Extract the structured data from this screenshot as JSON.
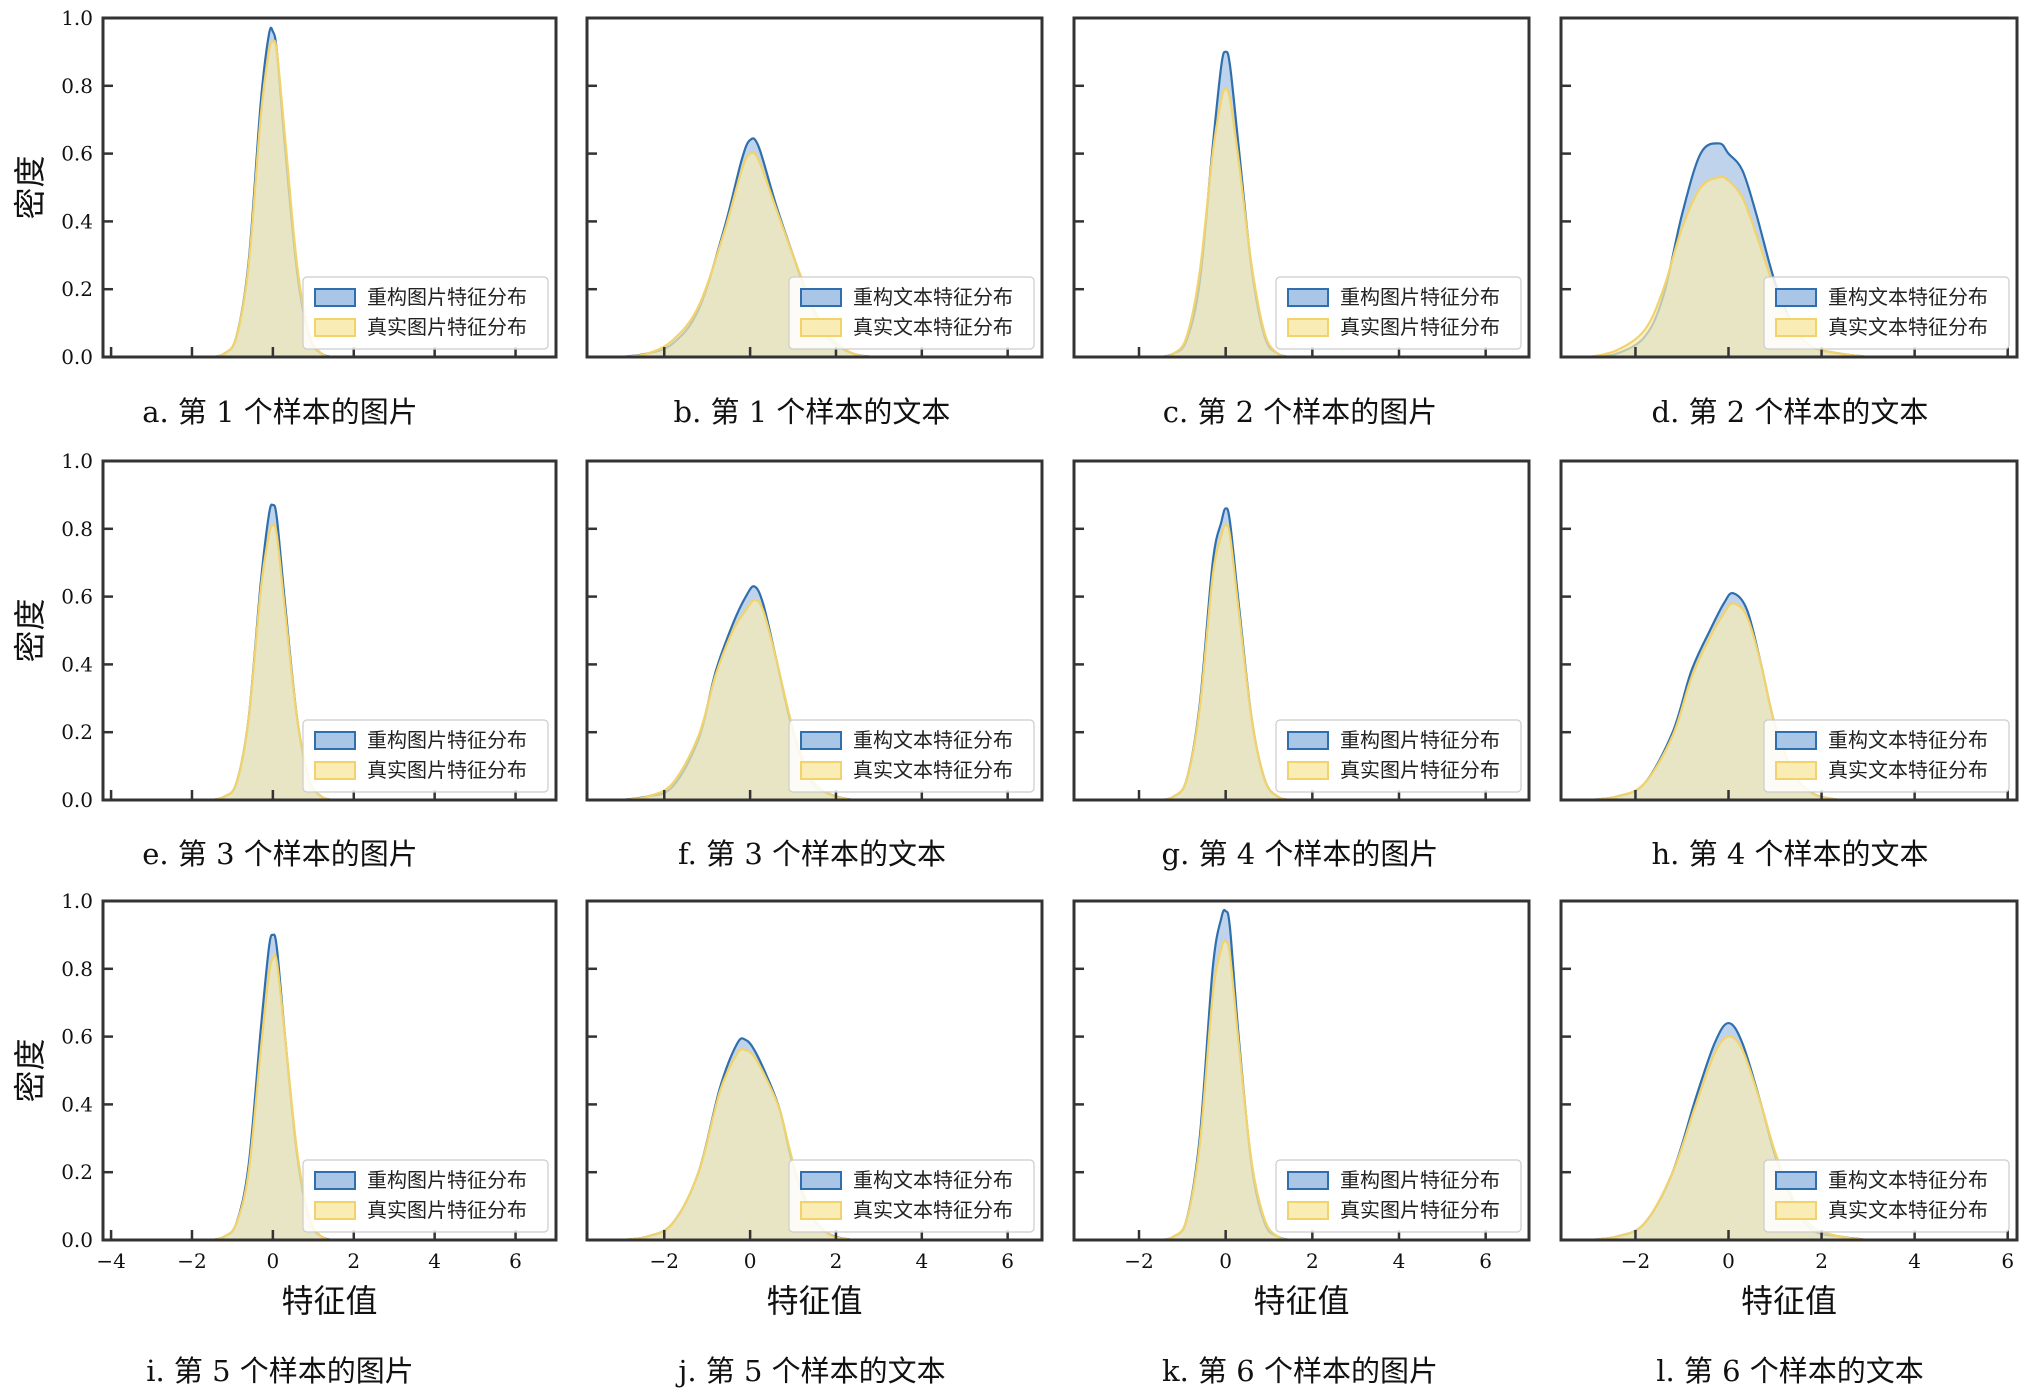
{
  "chart_data": {
    "type": "area",
    "colors": {
      "reconstructed": "#2f6fad",
      "reconstructed_fill": "#a9c6e6",
      "real": "#f2d36b",
      "real_fill": "#f9ecb4",
      "overlap_fill": "#d9dcc8",
      "frame": "#333333"
    },
    "ylabel_text": "密度",
    "xlabel_text": "特征值",
    "panels": [
      {
        "id": "a",
        "caption": "a. 第 1 个样本的图片",
        "kind": "image",
        "xlim": [
          -4.2,
          7.0
        ],
        "ylim": [
          0,
          1.0
        ],
        "series": [
          {
            "name": "重构图片特征分布",
            "x": [
              -1.5,
              -1.2,
              -0.9,
              -0.6,
              -0.3,
              -0.1,
              0.0,
              0.1,
              0.3,
              0.6,
              0.9,
              1.2,
              1.5
            ],
            "y": [
              0.0,
              0.01,
              0.06,
              0.28,
              0.75,
              0.95,
              0.96,
              0.9,
              0.62,
              0.25,
              0.06,
              0.01,
              0.0
            ]
          },
          {
            "name": "真实图片特征分布",
            "x": [
              -1.5,
              -1.2,
              -0.9,
              -0.6,
              -0.3,
              -0.1,
              0.0,
              0.1,
              0.3,
              0.6,
              0.9,
              1.2,
              1.5
            ],
            "y": [
              0.0,
              0.01,
              0.06,
              0.27,
              0.71,
              0.9,
              0.93,
              0.9,
              0.65,
              0.27,
              0.07,
              0.01,
              0.0
            ]
          }
        ]
      },
      {
        "id": "b",
        "caption": "b. 第 1 个样本的文本",
        "kind": "text",
        "xlim": [
          -3.8,
          6.8
        ],
        "ylim": [
          0,
          1.0
        ],
        "series": [
          {
            "name": "重构文本特征分布",
            "x": [
              -3.0,
              -2.4,
              -1.8,
              -1.2,
              -0.6,
              -0.2,
              0.0,
              0.2,
              0.6,
              1.0,
              1.4,
              1.8,
              2.4,
              3.0
            ],
            "y": [
              0.0,
              0.01,
              0.04,
              0.14,
              0.38,
              0.58,
              0.64,
              0.62,
              0.45,
              0.3,
              0.16,
              0.06,
              0.01,
              0.0
            ]
          },
          {
            "name": "真实文本特征分布",
            "x": [
              -3.0,
              -2.4,
              -1.8,
              -1.2,
              -0.6,
              -0.2,
              0.0,
              0.2,
              0.6,
              1.0,
              1.4,
              1.8,
              2.4,
              3.0
            ],
            "y": [
              0.0,
              0.01,
              0.05,
              0.15,
              0.37,
              0.55,
              0.6,
              0.58,
              0.44,
              0.3,
              0.17,
              0.07,
              0.01,
              0.0
            ]
          }
        ]
      },
      {
        "id": "c",
        "caption": "c. 第 2 个样本的图片",
        "kind": "image",
        "xlim": [
          -3.5,
          7.0
        ],
        "ylim": [
          0,
          1.0
        ],
        "series": [
          {
            "name": "重构图片特征分布",
            "x": [
              -1.5,
              -1.2,
              -0.9,
              -0.6,
              -0.3,
              -0.1,
              0.0,
              0.1,
              0.3,
              0.6,
              0.9,
              1.2,
              1.5
            ],
            "y": [
              0.0,
              0.01,
              0.05,
              0.22,
              0.62,
              0.86,
              0.9,
              0.86,
              0.62,
              0.26,
              0.06,
              0.01,
              0.0
            ]
          },
          {
            "name": "真实图片特征分布",
            "x": [
              -1.5,
              -1.2,
              -0.9,
              -0.6,
              -0.3,
              -0.1,
              0.0,
              0.1,
              0.3,
              0.6,
              0.9,
              1.2,
              1.5
            ],
            "y": [
              0.0,
              0.01,
              0.06,
              0.25,
              0.6,
              0.76,
              0.79,
              0.76,
              0.58,
              0.27,
              0.07,
              0.01,
              0.0
            ]
          }
        ]
      },
      {
        "id": "d",
        "caption": "d. 第 2 个样本的文本",
        "kind": "text",
        "xlim": [
          -3.6,
          6.2
        ],
        "ylim": [
          0,
          1.0
        ],
        "series": [
          {
            "name": "重构文本特征分布",
            "x": [
              -3.0,
              -2.4,
              -1.8,
              -1.4,
              -1.0,
              -0.6,
              -0.2,
              0.0,
              0.3,
              0.6,
              1.0,
              1.4,
              1.8,
              2.4,
              3.0
            ],
            "y": [
              0.0,
              0.01,
              0.06,
              0.18,
              0.42,
              0.6,
              0.63,
              0.6,
              0.55,
              0.42,
              0.22,
              0.09,
              0.03,
              0.01,
              0.0
            ]
          },
          {
            "name": "真实文本特征分布",
            "x": [
              -3.0,
              -2.4,
              -1.8,
              -1.4,
              -1.0,
              -0.6,
              -0.2,
              0.0,
              0.3,
              0.6,
              1.0,
              1.4,
              1.8,
              2.4,
              3.0
            ],
            "y": [
              0.0,
              0.02,
              0.08,
              0.2,
              0.38,
              0.5,
              0.53,
              0.52,
              0.47,
              0.36,
              0.2,
              0.09,
              0.03,
              0.01,
              0.0
            ]
          }
        ]
      },
      {
        "id": "e",
        "caption": "e. 第 3 个样本的图片",
        "kind": "image",
        "xlim": [
          -4.2,
          7.0
        ],
        "ylim": [
          0,
          1.0
        ],
        "series": [
          {
            "name": "重构图片特征分布",
            "x": [
              -1.5,
              -1.2,
              -0.9,
              -0.6,
              -0.3,
              -0.1,
              0.0,
              0.1,
              0.3,
              0.6,
              0.9,
              1.2,
              1.5
            ],
            "y": [
              0.0,
              0.01,
              0.05,
              0.24,
              0.64,
              0.84,
              0.87,
              0.83,
              0.58,
              0.24,
              0.06,
              0.01,
              0.0
            ]
          },
          {
            "name": "真实图片特征分布",
            "x": [
              -1.5,
              -1.2,
              -0.9,
              -0.6,
              -0.3,
              -0.1,
              0.0,
              0.1,
              0.3,
              0.6,
              0.9,
              1.2,
              1.5
            ],
            "y": [
              0.0,
              0.01,
              0.05,
              0.24,
              0.62,
              0.78,
              0.81,
              0.78,
              0.56,
              0.24,
              0.06,
              0.01,
              0.0
            ]
          }
        ]
      },
      {
        "id": "f",
        "caption": "f. 第 3 个样本的文本",
        "kind": "text",
        "xlim": [
          -3.8,
          6.8
        ],
        "ylim": [
          0,
          1.0
        ],
        "series": [
          {
            "name": "重构文本特征分布",
            "x": [
              -3.0,
              -2.4,
              -1.8,
              -1.2,
              -0.8,
              -0.4,
              -0.1,
              0.1,
              0.3,
              0.6,
              1.0,
              1.4,
              1.8,
              2.4,
              3.0
            ],
            "y": [
              0.0,
              0.01,
              0.04,
              0.18,
              0.38,
              0.52,
              0.6,
              0.63,
              0.58,
              0.42,
              0.2,
              0.06,
              0.02,
              0.0,
              0.0
            ]
          },
          {
            "name": "真实文本特征分布",
            "x": [
              -3.0,
              -2.4,
              -1.8,
              -1.2,
              -0.8,
              -0.4,
              -0.1,
              0.1,
              0.3,
              0.6,
              1.0,
              1.4,
              1.8,
              2.4,
              3.0
            ],
            "y": [
              0.0,
              0.01,
              0.05,
              0.19,
              0.37,
              0.5,
              0.56,
              0.59,
              0.56,
              0.42,
              0.21,
              0.07,
              0.02,
              0.0,
              0.0
            ]
          }
        ]
      },
      {
        "id": "g",
        "caption": "g. 第 4 个样本的图片",
        "kind": "image",
        "xlim": [
          -3.5,
          7.0
        ],
        "ylim": [
          0,
          1.0
        ],
        "series": [
          {
            "name": "重构图片特征分布",
            "x": [
              -1.5,
              -1.2,
              -0.9,
              -0.6,
              -0.3,
              -0.1,
              0.0,
              0.1,
              0.3,
              0.6,
              0.9,
              1.2,
              1.5
            ],
            "y": [
              0.0,
              0.01,
              0.06,
              0.28,
              0.7,
              0.82,
              0.86,
              0.82,
              0.58,
              0.24,
              0.06,
              0.01,
              0.0
            ]
          },
          {
            "name": "真实图片特征分布",
            "x": [
              -1.5,
              -1.2,
              -0.9,
              -0.6,
              -0.3,
              -0.1,
              0.0,
              0.1,
              0.3,
              0.6,
              0.9,
              1.2,
              1.5
            ],
            "y": [
              0.0,
              0.01,
              0.06,
              0.27,
              0.66,
              0.78,
              0.81,
              0.78,
              0.56,
              0.24,
              0.06,
              0.01,
              0.0
            ]
          }
        ]
      },
      {
        "id": "h",
        "caption": "h. 第 4 个样本的文本",
        "kind": "text",
        "xlim": [
          -3.6,
          6.2
        ],
        "ylim": [
          0,
          1.0
        ],
        "series": [
          {
            "name": "重构文本特征分布",
            "x": [
              -3.0,
              -2.4,
              -1.8,
              -1.2,
              -0.8,
              -0.4,
              -0.1,
              0.1,
              0.4,
              0.7,
              1.0,
              1.4,
              1.8,
              2.4,
              3.0
            ],
            "y": [
              0.0,
              0.01,
              0.05,
              0.2,
              0.38,
              0.5,
              0.58,
              0.61,
              0.56,
              0.4,
              0.22,
              0.08,
              0.02,
              0.0,
              0.0
            ]
          },
          {
            "name": "真实文本特征分布",
            "x": [
              -3.0,
              -2.4,
              -1.8,
              -1.2,
              -0.8,
              -0.4,
              -0.1,
              0.1,
              0.4,
              0.7,
              1.0,
              1.4,
              1.8,
              2.4,
              3.0
            ],
            "y": [
              0.0,
              0.01,
              0.05,
              0.19,
              0.36,
              0.48,
              0.55,
              0.58,
              0.54,
              0.4,
              0.22,
              0.08,
              0.02,
              0.0,
              0.0
            ]
          }
        ]
      },
      {
        "id": "i",
        "caption": "i. 第 5 个样本的图片",
        "kind": "image",
        "xlim": [
          -4.2,
          7.0
        ],
        "ylim": [
          0,
          1.0
        ],
        "xticks": [
          -4,
          -2,
          0,
          2,
          4,
          6
        ],
        "show_xlabel": true,
        "series": [
          {
            "name": "重构图片特征分布",
            "x": [
              -1.5,
              -1.2,
              -0.9,
              -0.6,
              -0.3,
              -0.1,
              0.0,
              0.1,
              0.3,
              0.6,
              0.9,
              1.2,
              1.5
            ],
            "y": [
              0.0,
              0.01,
              0.05,
              0.22,
              0.62,
              0.86,
              0.9,
              0.86,
              0.6,
              0.25,
              0.06,
              0.01,
              0.0
            ]
          },
          {
            "name": "真实图片特征分布",
            "x": [
              -1.5,
              -1.2,
              -0.9,
              -0.6,
              -0.3,
              -0.1,
              0.0,
              0.1,
              0.3,
              0.6,
              0.9,
              1.2,
              1.5
            ],
            "y": [
              0.0,
              0.01,
              0.05,
              0.2,
              0.56,
              0.78,
              0.83,
              0.82,
              0.6,
              0.26,
              0.07,
              0.01,
              0.0
            ]
          }
        ]
      },
      {
        "id": "j",
        "caption": "j. 第 5 个样本的文本",
        "kind": "text",
        "xlim": [
          -3.8,
          6.8
        ],
        "ylim": [
          0,
          1.0
        ],
        "xticks": [
          -2,
          0,
          2,
          4,
          6
        ],
        "show_xlabel": true,
        "series": [
          {
            "name": "重构文本特征分布",
            "x": [
              -3.0,
              -2.4,
              -1.8,
              -1.2,
              -0.7,
              -0.3,
              -0.1,
              0.1,
              0.4,
              0.7,
              1.0,
              1.4,
              1.8,
              2.4,
              3.0
            ],
            "y": [
              0.0,
              0.01,
              0.05,
              0.2,
              0.45,
              0.58,
              0.59,
              0.56,
              0.48,
              0.38,
              0.22,
              0.08,
              0.02,
              0.0,
              0.0
            ]
          },
          {
            "name": "真实文本特征分布",
            "x": [
              -3.0,
              -2.4,
              -1.8,
              -1.2,
              -0.7,
              -0.3,
              -0.1,
              0.1,
              0.4,
              0.7,
              1.0,
              1.4,
              1.8,
              2.4,
              3.0
            ],
            "y": [
              0.0,
              0.01,
              0.05,
              0.2,
              0.44,
              0.55,
              0.56,
              0.54,
              0.47,
              0.38,
              0.23,
              0.09,
              0.02,
              0.0,
              0.0
            ]
          }
        ]
      },
      {
        "id": "k",
        "caption": "k. 第 6 个样本的图片",
        "kind": "image",
        "xlim": [
          -3.5,
          7.0
        ],
        "ylim": [
          0,
          1.0
        ],
        "xticks": [
          -2,
          0,
          2,
          4,
          6
        ],
        "show_xlabel": true,
        "series": [
          {
            "name": "重构图片特征分布",
            "x": [
              -1.5,
              -1.2,
              -0.9,
              -0.6,
              -0.3,
              -0.1,
              0.0,
              0.1,
              0.3,
              0.6,
              0.9,
              1.2,
              1.5
            ],
            "y": [
              0.0,
              0.01,
              0.06,
              0.3,
              0.8,
              0.95,
              0.97,
              0.92,
              0.6,
              0.22,
              0.05,
              0.01,
              0.0
            ]
          },
          {
            "name": "真实图片特征分布",
            "x": [
              -1.5,
              -1.2,
              -0.9,
              -0.6,
              -0.3,
              -0.1,
              0.0,
              0.1,
              0.3,
              0.6,
              0.9,
              1.2,
              1.5
            ],
            "y": [
              0.0,
              0.01,
              0.06,
              0.28,
              0.72,
              0.86,
              0.88,
              0.84,
              0.58,
              0.23,
              0.06,
              0.01,
              0.0
            ]
          }
        ]
      },
      {
        "id": "l",
        "caption": "l. 第 6 个样本的文本",
        "kind": "text",
        "xlim": [
          -3.6,
          6.2
        ],
        "ylim": [
          0,
          1.0
        ],
        "xticks": [
          -2,
          0,
          2,
          4,
          6
        ],
        "show_xlabel": true,
        "series": [
          {
            "name": "重构文本特征分布",
            "x": [
              -3.0,
              -2.4,
              -1.8,
              -1.2,
              -0.7,
              -0.3,
              0.0,
              0.3,
              0.7,
              1.0,
              1.4,
              1.8,
              2.4,
              3.0
            ],
            "y": [
              0.0,
              0.01,
              0.05,
              0.2,
              0.42,
              0.58,
              0.64,
              0.58,
              0.4,
              0.25,
              0.11,
              0.03,
              0.01,
              0.0
            ]
          },
          {
            "name": "真实文本特征分布",
            "x": [
              -3.0,
              -2.4,
              -1.8,
              -1.2,
              -0.7,
              -0.3,
              0.0,
              0.3,
              0.7,
              1.0,
              1.4,
              1.8,
              2.4,
              3.0
            ],
            "y": [
              0.0,
              0.01,
              0.05,
              0.2,
              0.4,
              0.55,
              0.6,
              0.56,
              0.4,
              0.26,
              0.12,
              0.04,
              0.01,
              0.0
            ]
          }
        ]
      }
    ],
    "yticks": [
      0.0,
      0.2,
      0.4,
      0.6,
      0.8,
      1.0
    ],
    "ytick_labels": [
      "0.0",
      "0.2",
      "0.4",
      "0.6",
      "0.8",
      "1.0"
    ],
    "legend_position": "lower-right",
    "grid": false
  }
}
